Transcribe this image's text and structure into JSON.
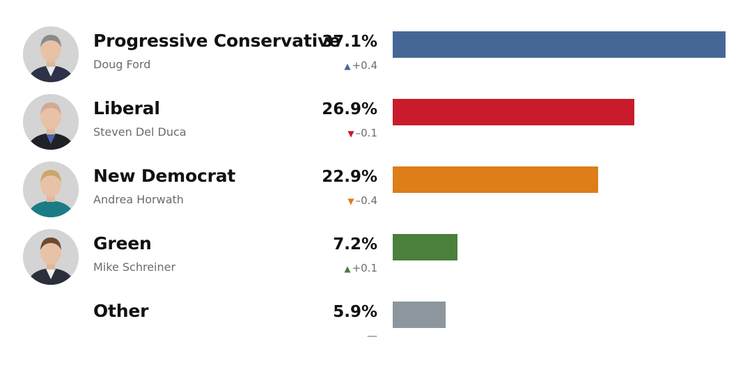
{
  "chart_data": {
    "type": "bar",
    "orientation": "horizontal",
    "title": "",
    "xlabel": "",
    "ylabel": "",
    "xlim": [
      0,
      37.1
    ],
    "grid": false,
    "categories": [
      "Progressive Conservative",
      "Liberal",
      "New Democrat",
      "Green",
      "Other"
    ],
    "values": [
      37.1,
      26.9,
      22.9,
      7.2,
      5.9
    ],
    "rows": [
      {
        "party": "Progressive Conservative",
        "leader": "Doug Ford",
        "value": 37.1,
        "value_label": "37.1%",
        "change_label": "+0.4",
        "change_direction": "up",
        "color": "#466796",
        "has_avatar": true,
        "avatar_hair": "#8a8a88",
        "avatar_suit": "#2c3347",
        "avatar_shirt": "#e6ecf2"
      },
      {
        "party": "Liberal",
        "leader": "Steven Del Duca",
        "value": 26.9,
        "value_label": "26.9%",
        "change_label": "–0.1",
        "change_direction": "down",
        "color": "#c91b2c",
        "has_avatar": true,
        "avatar_hair": "#d2aa96",
        "avatar_suit": "#1f2128",
        "avatar_shirt": "#4a63a8"
      },
      {
        "party": "New Democrat",
        "leader": "Andrea Horwath",
        "value": 22.9,
        "value_label": "22.9%",
        "change_label": "–0.4",
        "change_direction": "down",
        "color": "#dd7e18",
        "has_avatar": true,
        "avatar_hair": "#c9a86a",
        "avatar_suit": "#1b7c86",
        "avatar_shirt": "#1b7c86"
      },
      {
        "party": "Green",
        "leader": "Mike Schreiner",
        "value": 7.2,
        "value_label": "7.2%",
        "change_label": "+0.1",
        "change_direction": "up",
        "color": "#4a7f3c",
        "has_avatar": true,
        "avatar_hair": "#6e4a30",
        "avatar_suit": "#2a2f3a",
        "avatar_shirt": "#eef0f2"
      },
      {
        "party": "Other",
        "leader": "",
        "value": 5.9,
        "value_label": "5.9%",
        "change_label": "—",
        "change_direction": "none",
        "color": "#8c969c",
        "has_avatar": false
      }
    ]
  }
}
